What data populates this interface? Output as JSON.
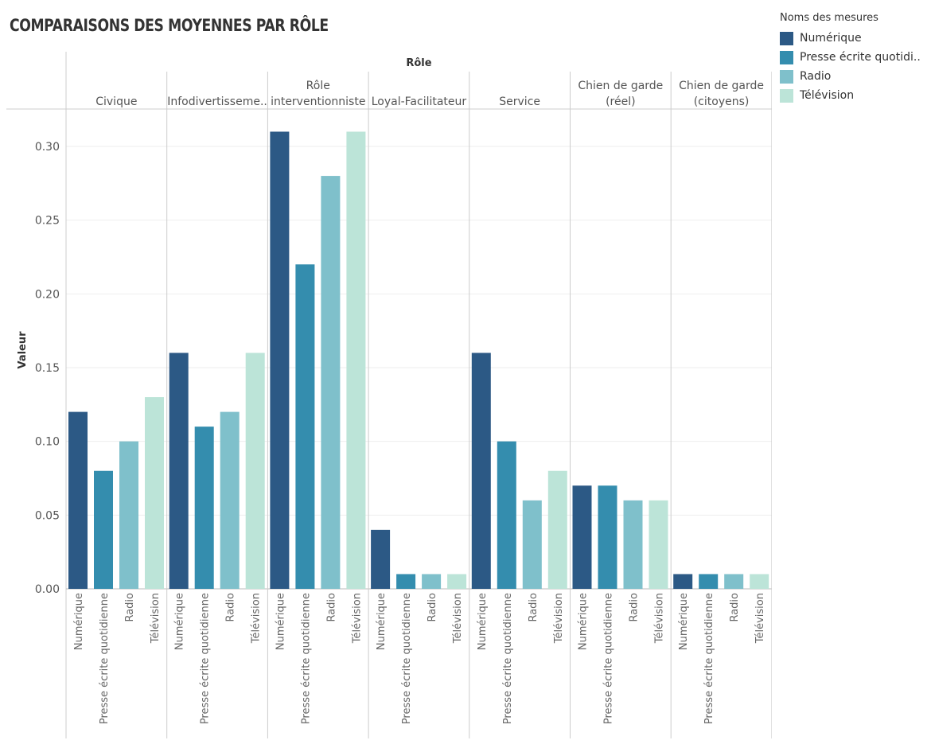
{
  "chart_data": {
    "type": "bar",
    "title": "COMPARAISONS DES MOYENNES PAR RÔLE",
    "column_header": "Rôle",
    "ylabel": "Valeur",
    "ylim": [
      0,
      0.32
    ],
    "yticks": [
      "0.00",
      "0.05",
      "0.10",
      "0.15",
      "0.20",
      "0.25",
      "0.30"
    ],
    "grid": true,
    "legend": {
      "title": "Noms des mesures",
      "placement": "top-right",
      "entries": [
        "Numérique",
        "Presse écrite quotidi..",
        "Radio",
        "Télévision"
      ]
    },
    "categories": [
      "Numérique",
      "Presse écrite quotidienne",
      "Radio",
      "Télévision"
    ],
    "colors": [
      "#2c5985",
      "#348dae",
      "#7fc0cb",
      "#bce4d8"
    ],
    "panels": [
      {
        "name": [
          "Civique"
        ],
        "values": [
          0.12,
          0.08,
          0.1,
          0.13
        ]
      },
      {
        "name": [
          "Infodivertisseme.."
        ],
        "values": [
          0.16,
          0.11,
          0.12,
          0.16
        ]
      },
      {
        "name": [
          "Rôle",
          "interventionniste"
        ],
        "values": [
          0.31,
          0.22,
          0.28,
          0.31
        ]
      },
      {
        "name": [
          "Loyal-Facilitateur"
        ],
        "values": [
          0.04,
          0.01,
          0.01,
          0.01
        ]
      },
      {
        "name": [
          "Service"
        ],
        "values": [
          0.16,
          0.1,
          0.06,
          0.08
        ]
      },
      {
        "name": [
          "Chien de garde",
          "(réel)"
        ],
        "values": [
          0.07,
          0.07,
          0.06,
          0.06
        ]
      },
      {
        "name": [
          "Chien de garde",
          "(citoyens)"
        ],
        "values": [
          0.01,
          0.01,
          0.01,
          0.01
        ]
      }
    ]
  }
}
